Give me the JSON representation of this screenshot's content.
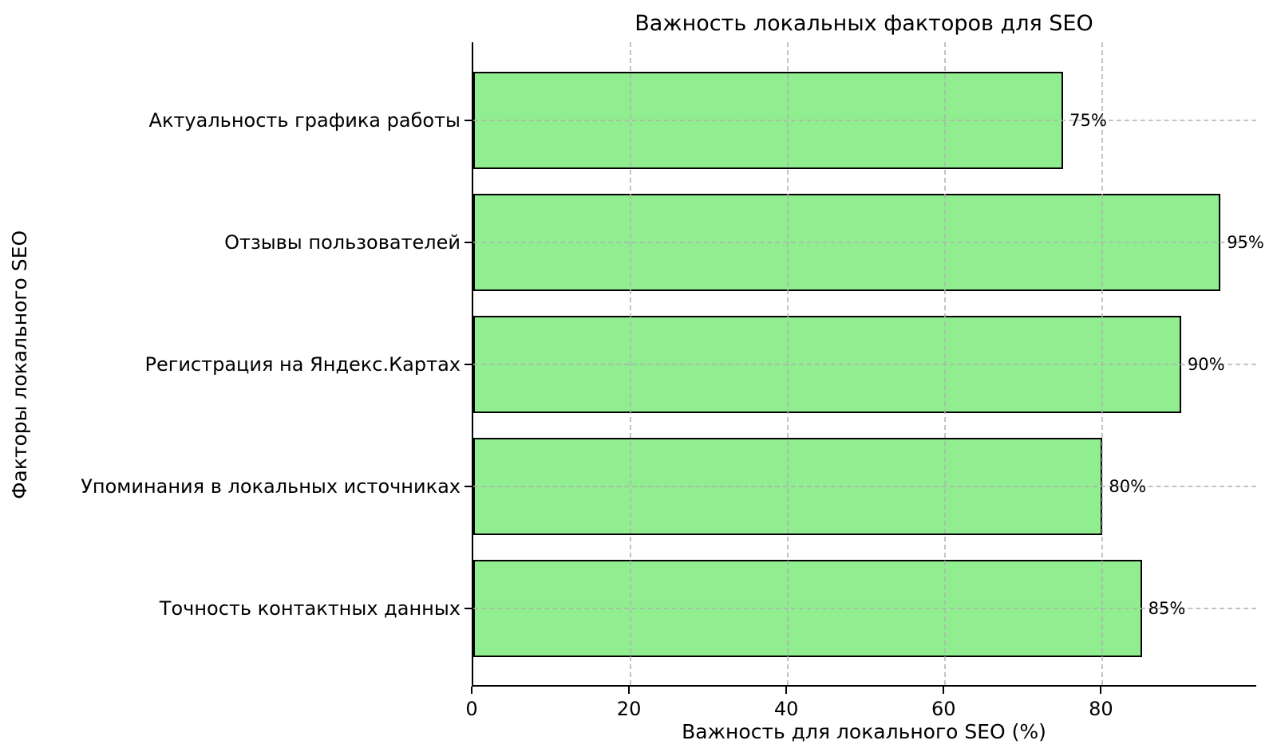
{
  "chart_data": {
    "type": "bar",
    "orientation": "horizontal",
    "title": "Важность локальных факторов для SEO",
    "xlabel": "Важность для локального SEO (%)",
    "ylabel": "Факторы локального SEO",
    "categories": [
      "Актуальность графика работы",
      "Отзывы пользователей",
      "Регистрация на Яндекс.Картах",
      "Упоминания в локальных источниках",
      "Точность контактных данных"
    ],
    "values": [
      75,
      95,
      90,
      80,
      85
    ],
    "data_labels": [
      "75%",
      "95%",
      "90%",
      "80%",
      "85%"
    ],
    "x_ticks": [
      0,
      20,
      40,
      60,
      80
    ],
    "xlim": [
      0,
      99.75
    ],
    "grid": "dashed-both-axes-above-bars",
    "legend": "none",
    "colors": {
      "bar_fill": "#90EE90",
      "bar_edge": "#000000",
      "grid": "#b0b0b0",
      "spine": "#000000",
      "text": "#000000",
      "background": "#ffffff"
    }
  }
}
